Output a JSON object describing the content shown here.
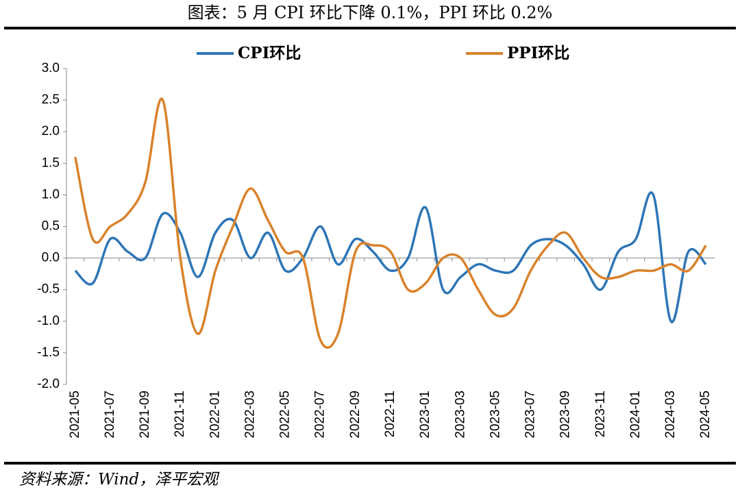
{
  "chart_data": {
    "type": "line",
    "title": "图表：5 月 CPI 环比下降 0.1%，PPI 环比 0.2%",
    "source": "资料来源：Wind，泽平宏观",
    "categories": [
      "2021-05",
      null,
      "2021-07",
      null,
      "2021-09",
      null,
      "2021-11",
      null,
      "2022-01",
      null,
      "2022-03",
      null,
      "2022-05",
      null,
      "2022-07",
      null,
      "2022-09",
      null,
      "2022-11",
      null,
      "2023-01",
      null,
      "2023-03",
      null,
      "2023-05",
      null,
      "2023-07",
      null,
      "2023-09",
      null,
      "2023-11",
      null,
      "2024-01",
      null,
      "2024-03",
      null,
      "2024-05"
    ],
    "series": [
      {
        "name": "CPI环比",
        "color": "#2e75b6",
        "values": [
          -0.2,
          -0.4,
          0.3,
          0.1,
          0.0,
          0.7,
          0.4,
          -0.3,
          0.4,
          0.6,
          0.0,
          0.4,
          -0.2,
          0.0,
          0.5,
          -0.1,
          0.3,
          0.1,
          -0.2,
          0.0,
          0.8,
          -0.5,
          -0.3,
          -0.1,
          -0.2,
          -0.2,
          0.2,
          0.3,
          0.2,
          -0.1,
          -0.5,
          0.1,
          0.3,
          1.0,
          -1.0,
          0.1,
          -0.1
        ]
      },
      {
        "name": "PPI环比",
        "color": "#d9822b",
        "values": [
          1.6,
          0.3,
          0.5,
          0.7,
          1.2,
          2.5,
          0.0,
          -1.2,
          -0.2,
          0.5,
          1.1,
          0.6,
          0.1,
          0.0,
          -1.3,
          -1.2,
          0.1,
          0.2,
          0.1,
          -0.5,
          -0.4,
          0.0,
          0.0,
          -0.5,
          -0.9,
          -0.8,
          -0.2,
          0.2,
          0.4,
          0.0,
          -0.3,
          -0.3,
          -0.2,
          -0.2,
          -0.1,
          -0.2,
          0.2
        ]
      }
    ],
    "ylim": [
      -2,
      3
    ],
    "yticks": [
      {
        "value": -2,
        "label": "-2.0"
      },
      -1.5,
      {
        "value": -1,
        "label": "-1.0"
      },
      -0.5,
      {
        "value": 0,
        "label": "0.0"
      },
      0.5,
      {
        "value": 1,
        "label": "1.0"
      },
      1.5,
      {
        "value": 2,
        "label": "2.0"
      },
      2.5,
      {
        "value": 3,
        "label": "3.0"
      }
    ],
    "smooth": true
  }
}
